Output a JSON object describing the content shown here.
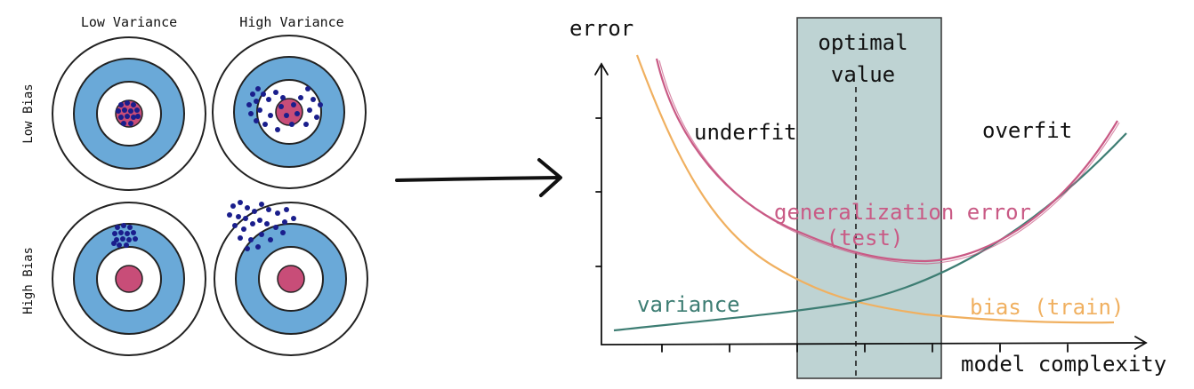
{
  "targets": {
    "col_labels": [
      "Low Variance",
      "High Variance"
    ],
    "row_labels": [
      "Low Bias",
      "High Bias"
    ],
    "colors": {
      "ring_blue": "#6aa9d8",
      "bullseye": "#c84d78",
      "dot": "#1a1e8c",
      "outline": "#222222"
    }
  },
  "arrow": {
    "icon": "right-arrow-icon"
  },
  "plot": {
    "y_axis_label": "error",
    "x_axis_label": "model complexity",
    "optimal_label_line1": "optimal",
    "optimal_label_line2": "value",
    "underfit_label": "underfit",
    "overfit_label": "overfit",
    "generalization_label_line1": "generalization error",
    "generalization_label_line2": "(test)",
    "variance_label": "variance",
    "bias_label": "bias (train)",
    "colors": {
      "variance": "#3d7d73",
      "bias": "#f0b060",
      "generalization": "#c95a85",
      "optimal_band": "#a8c4c4"
    }
  }
}
